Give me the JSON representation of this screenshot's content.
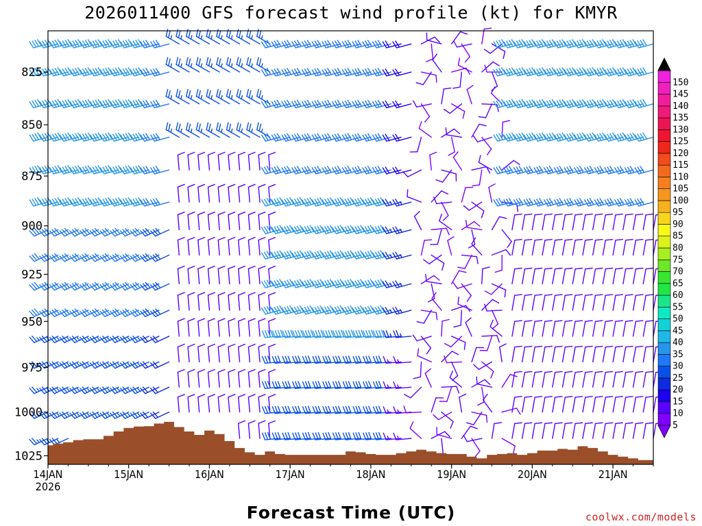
{
  "title": "2026011400 GFS forecast wind profile (kt) for KMYR",
  "footer": {
    "xlabel": "Forecast Time (UTC)",
    "credit": "coolwx.com/models"
  },
  "chart_data": {
    "type": "wind-barb-time-height",
    "station": "KMYR",
    "model": "GFS",
    "init": "2026011400",
    "units": "kt",
    "xlabel": "Forecast Time (UTC)",
    "x_range_hours": [
      0,
      180
    ],
    "x_step_hours": 3,
    "x_ticks": [
      {
        "hour": 0,
        "label": "14JAN",
        "sub": "2026"
      },
      {
        "hour": 24,
        "label": "15JAN"
      },
      {
        "hour": 48,
        "label": "16JAN"
      },
      {
        "hour": 72,
        "label": "17JAN"
      },
      {
        "hour": 96,
        "label": "18JAN"
      },
      {
        "hour": 120,
        "label": "19JAN"
      },
      {
        "hour": 144,
        "label": "20JAN"
      },
      {
        "hour": 168,
        "label": "21JAN"
      }
    ],
    "y_range_hpa": [
      1030,
      806
    ],
    "y_ticks": [
      825,
      850,
      875,
      900,
      925,
      950,
      975,
      1000,
      1025
    ],
    "barb_levels_hpa": [
      812,
      825,
      840,
      856,
      872,
      888,
      902,
      915,
      930,
      944,
      958,
      972,
      986,
      1000,
      1015
    ],
    "colorbar": {
      "levels": [
        5,
        10,
        15,
        20,
        25,
        30,
        35,
        40,
        45,
        50,
        55,
        60,
        65,
        70,
        75,
        80,
        85,
        90,
        95,
        100,
        105,
        110,
        115,
        120,
        125,
        130,
        135,
        140,
        145,
        150
      ],
      "colors": [
        "#7f00ff",
        "#5a00ff",
        "#1e00f0",
        "#0f2be0",
        "#0a50e8",
        "#1f78f5",
        "#2596ec",
        "#20b7e8",
        "#12d2d8",
        "#0ee8c3",
        "#19e68a",
        "#22e646",
        "#38e632",
        "#6ee62a",
        "#a8ee20",
        "#dcf21c",
        "#f8f81a",
        "#f7d51c",
        "#f6b21e",
        "#f5961f",
        "#f57f1f",
        "#f36a1f",
        "#f24b1c",
        "#f0261a",
        "#ef1430",
        "#ed1454",
        "#ef1a79",
        "#f01e9c",
        "#f020be",
        "#f020df"
      ]
    },
    "surface_pressure_hpa": [
      {
        "hour": 0,
        "p": 1019.0
      },
      {
        "hour": 3,
        "p": 1018.0
      },
      {
        "hour": 6,
        "p": 1017.2
      },
      {
        "hour": 9,
        "p": 1016.0
      },
      {
        "hour": 12,
        "p": 1015.5
      },
      {
        "hour": 15,
        "p": 1015.5
      },
      {
        "hour": 18,
        "p": 1013.5
      },
      {
        "hour": 21,
        "p": 1011.0
      },
      {
        "hour": 24,
        "p": 1009.0
      },
      {
        "hour": 27,
        "p": 1008.2
      },
      {
        "hour": 30,
        "p": 1008.0
      },
      {
        "hour": 33,
        "p": 1006.5
      },
      {
        "hour": 36,
        "p": 1005.5
      },
      {
        "hour": 39,
        "p": 1008.5
      },
      {
        "hour": 42,
        "p": 1011.0
      },
      {
        "hour": 45,
        "p": 1013.0
      },
      {
        "hour": 48,
        "p": 1010.5
      },
      {
        "hour": 51,
        "p": 1012.5
      },
      {
        "hour": 54,
        "p": 1016.5
      },
      {
        "hour": 57,
        "p": 1020.5
      },
      {
        "hour": 60,
        "p": 1023.0
      },
      {
        "hour": 63,
        "p": 1024.5
      },
      {
        "hour": 66,
        "p": 1022.5
      },
      {
        "hour": 69,
        "p": 1024.0
      },
      {
        "hour": 72,
        "p": 1024.5
      },
      {
        "hour": 75,
        "p": 1024.5
      },
      {
        "hour": 78,
        "p": 1024.5
      },
      {
        "hour": 81,
        "p": 1024.5
      },
      {
        "hour": 84,
        "p": 1024.5
      },
      {
        "hour": 87,
        "p": 1024.5
      },
      {
        "hour": 90,
        "p": 1022.5
      },
      {
        "hour": 93,
        "p": 1023.0
      },
      {
        "hour": 96,
        "p": 1024.0
      },
      {
        "hour": 99,
        "p": 1024.5
      },
      {
        "hour": 102,
        "p": 1024.5
      },
      {
        "hour": 105,
        "p": 1023.5
      },
      {
        "hour": 108,
        "p": 1022.5
      },
      {
        "hour": 111,
        "p": 1021.5
      },
      {
        "hour": 114,
        "p": 1022.5
      },
      {
        "hour": 117,
        "p": 1023.5
      },
      {
        "hour": 120,
        "p": 1024.0
      },
      {
        "hour": 123,
        "p": 1024.0
      },
      {
        "hour": 126,
        "p": 1025.5
      },
      {
        "hour": 129,
        "p": 1026.5
      },
      {
        "hour": 132,
        "p": 1024.5
      },
      {
        "hour": 135,
        "p": 1024.0
      },
      {
        "hour": 138,
        "p": 1023.5
      },
      {
        "hour": 141,
        "p": 1024.5
      },
      {
        "hour": 144,
        "p": 1023.5
      },
      {
        "hour": 147,
        "p": 1022.0
      },
      {
        "hour": 150,
        "p": 1022.0
      },
      {
        "hour": 153,
        "p": 1021.0
      },
      {
        "hour": 156,
        "p": 1021.5
      },
      {
        "hour": 159,
        "p": 1019.5
      },
      {
        "hour": 162,
        "p": 1020.5
      },
      {
        "hour": 165,
        "p": 1022.5
      },
      {
        "hour": 168,
        "p": 1024.5
      },
      {
        "hour": 171,
        "p": 1025.5
      },
      {
        "hour": 174,
        "p": 1026.5
      },
      {
        "hour": 177,
        "p": 1027.5
      },
      {
        "hour": 180,
        "p": 1027.5
      }
    ],
    "wind_regimes": [
      {
        "from_hour": 0,
        "to_hour": 39,
        "note": "westerly; 20-35 kt low levels, 35-50 kt aloft"
      },
      {
        "from_hour": 39,
        "to_hour": 69,
        "note": "northerly; 5-15 kt below 870 hPa"
      },
      {
        "from_hour": 69,
        "to_hour": 111,
        "note": "westerly to west-southwesterly; 10-45 kt"
      },
      {
        "from_hour": 111,
        "to_hour": 138,
        "note": "light and variable; 5-15 kt"
      },
      {
        "from_hour": 138,
        "to_hour": 180,
        "note": "westerly aloft 20-45 kt; northerly near surface"
      }
    ]
  }
}
